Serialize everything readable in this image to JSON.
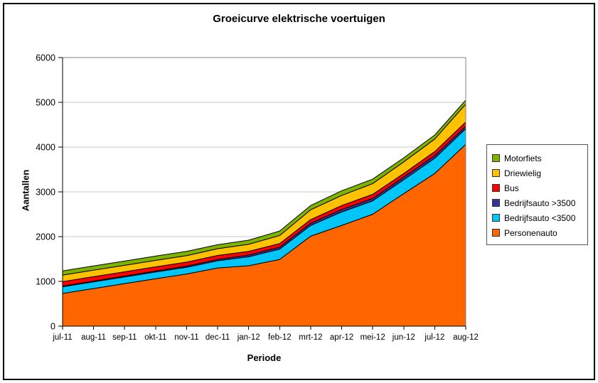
{
  "chart_data": {
    "type": "area",
    "stacked": true,
    "title": "Groeicurve elektrische voertuigen",
    "xlabel": "Periode",
    "ylabel": "Aantallen",
    "categories": [
      "jul-11",
      "aug-11",
      "sep-11",
      "okt-11",
      "nov-11",
      "dec-11",
      "jan-12",
      "feb-12",
      "mrt-12",
      "apr-12",
      "mei-12",
      "jun-12",
      "jul-12",
      "aug-12"
    ],
    "series": [
      {
        "name": "Personenauto",
        "color": "#FF6600",
        "values": [
          730,
          840,
          950,
          1060,
          1165,
          1300,
          1350,
          1490,
          2010,
          2250,
          2500,
          2960,
          3410,
          4060
        ]
      },
      {
        "name": "Bedrijfsauto <3500",
        "color": "#00C5F8",
        "values": [
          150,
          150,
          150,
          150,
          150,
          160,
          200,
          230,
          240,
          300,
          300,
          310,
          340,
          350
        ]
      },
      {
        "name": "Bedrijfsauto >3500",
        "color": "#333399",
        "values": [
          15,
          18,
          20,
          23,
          26,
          30,
          40,
          45,
          50,
          55,
          55,
          60,
          60,
          55
        ]
      },
      {
        "name": "Bus",
        "color": "#FF0000",
        "values": [
          100,
          98,
          95,
          92,
          90,
          90,
          80,
          80,
          80,
          90,
          90,
          80,
          90,
          95
        ]
      },
      {
        "name": "Driewielig",
        "color": "#FFC200",
        "values": [
          145,
          145,
          145,
          145,
          145,
          150,
          160,
          180,
          220,
          225,
          240,
          260,
          280,
          400
        ]
      },
      {
        "name": "Motorfiets",
        "color": "#7EB400",
        "values": [
          95,
          95,
          95,
          95,
          95,
          90,
          90,
          100,
          95,
          105,
          100,
          90,
          90,
          90
        ]
      }
    ],
    "legend": {
      "position": "right",
      "order_top_to_bottom": [
        "Motorfiets",
        "Driewielig",
        "Bus",
        "Bedrijfsauto >3500",
        "Bedrijfsauto <3500",
        "Personenauto"
      ]
    },
    "ylim": [
      0,
      6000
    ],
    "yticks": [
      0,
      1000,
      2000,
      3000,
      4000,
      5000,
      6000
    ],
    "grid": "horizontal",
    "colors": {
      "gridline": "#C9C9C9",
      "plot_frame": "#808080",
      "axis": "#000000",
      "area_outline": "#000000"
    }
  }
}
